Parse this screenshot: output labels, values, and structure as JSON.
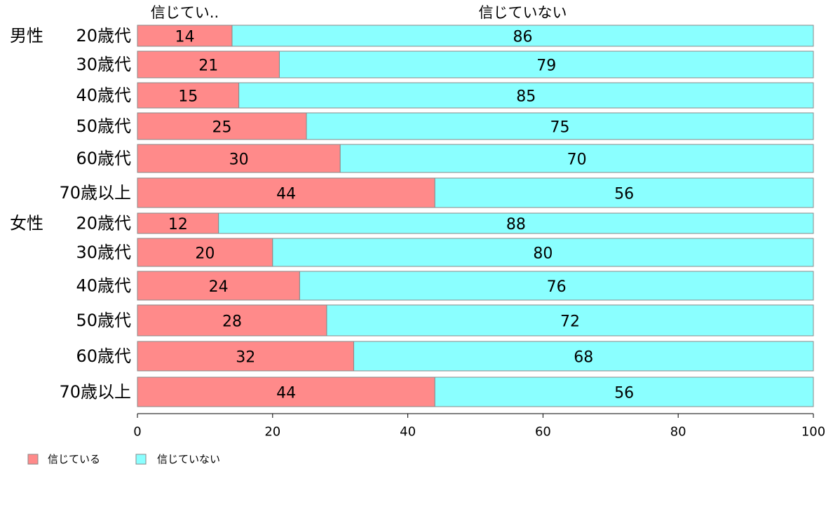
{
  "chart_data": {
    "type": "bar",
    "orientation": "horizontal",
    "stacked": true,
    "categories": [
      {
        "group": "男性",
        "label": "20歳代"
      },
      {
        "group": "",
        "label": "30歳代"
      },
      {
        "group": "",
        "label": "40歳代"
      },
      {
        "group": "",
        "label": "50歳代"
      },
      {
        "group": "",
        "label": "60歳代"
      },
      {
        "group": "",
        "label": "70歳以上"
      },
      {
        "group": "女性",
        "label": "20歳代"
      },
      {
        "group": "",
        "label": "30歳代"
      },
      {
        "group": "",
        "label": "40歳代"
      },
      {
        "group": "",
        "label": "50歳代"
      },
      {
        "group": "",
        "label": "60歳代"
      },
      {
        "group": "",
        "label": "70歳以上"
      }
    ],
    "series": [
      {
        "name": "信じている",
        "color": "#FF8A8A",
        "values": [
          14,
          21,
          15,
          25,
          30,
          44,
          12,
          20,
          24,
          28,
          32,
          44
        ],
        "data_labels": [
          "14",
          "21",
          "15",
          "25",
          "30",
          "44",
          "12",
          "20",
          "24",
          "28",
          "32",
          "44"
        ],
        "header": "信じてい.."
      },
      {
        "name": "信じていない",
        "color": "#8AFFFF",
        "values": [
          86,
          79,
          85,
          75,
          70,
          56,
          88,
          80,
          76,
          72,
          68,
          56
        ],
        "data_labels": [
          "86",
          "79",
          "85",
          "75",
          "70",
          "56",
          "88",
          "80",
          "76",
          "72",
          "68",
          "56"
        ],
        "header": "信じていない"
      }
    ],
    "xlim": [
      0,
      100
    ],
    "x_ticks": [
      0,
      20,
      40,
      60,
      80,
      100
    ],
    "x_tick_labels": [
      "0",
      "20",
      "40",
      "60",
      "80",
      "100"
    ],
    "grid": false,
    "legend": {
      "position": "bottom-left",
      "entries": [
        "信じている",
        "信じていない"
      ]
    }
  }
}
